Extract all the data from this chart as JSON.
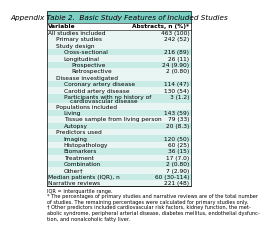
{
  "title": "Appendix Table 2.  Basic Study Features of Included Studies",
  "col1_header": "Variable",
  "col2_header": "Abstracts, n (%)*",
  "rows": [
    {
      "label": "All studies included",
      "value": "463 (100)",
      "indent": 0,
      "bold": false,
      "bg": "#e8f5f3"
    },
    {
      "label": "Primary studies",
      "value": "242 (52)",
      "indent": 1,
      "bold": false,
      "bg": "#e8f5f3"
    },
    {
      "label": "Study design",
      "value": "",
      "indent": 1,
      "bold": false,
      "bg": "#e8f5f3"
    },
    {
      "label": "Cross-sectional",
      "value": "216 (89)",
      "indent": 2,
      "bold": false,
      "bg": "#c8ebe6"
    },
    {
      "label": "Longitudinal",
      "value": "26 (11)",
      "indent": 2,
      "bold": false,
      "bg": "#e8f5f3"
    },
    {
      "label": "Prospective",
      "value": "24 (9.90)",
      "indent": 3,
      "bold": false,
      "bg": "#c8ebe6"
    },
    {
      "label": "Retrospective",
      "value": "2 (0.80)",
      "indent": 3,
      "bold": false,
      "bg": "#e8f5f3"
    },
    {
      "label": "Disease investigated",
      "value": "",
      "indent": 1,
      "bold": false,
      "bg": "#e8f5f3"
    },
    {
      "label": "Coronary artery disease",
      "value": "114 (47)",
      "indent": 2,
      "bold": false,
      "bg": "#c8ebe6"
    },
    {
      "label": "Carotid artery disease",
      "value": "130 (54)",
      "indent": 2,
      "bold": false,
      "bg": "#e8f5f3"
    },
    {
      "label": "Participants with no history of",
      "value": "3 (1.2)",
      "indent": 2,
      "bold": false,
      "bg": "#c8ebe6",
      "sub": "cardiovascular disease"
    },
    {
      "label": "Populations included",
      "value": "",
      "indent": 1,
      "bold": false,
      "bg": "#e8f5f3"
    },
    {
      "label": "Living",
      "value": "143 (59)",
      "indent": 2,
      "bold": false,
      "bg": "#c8ebe6"
    },
    {
      "label": "Tissue sample from living person",
      "value": "79 (33)",
      "indent": 2,
      "bold": false,
      "bg": "#e8f5f3"
    },
    {
      "label": "Autopsy",
      "value": "20 (8.3)",
      "indent": 2,
      "bold": false,
      "bg": "#c8ebe6"
    },
    {
      "label": "Predictors used",
      "value": "",
      "indent": 1,
      "bold": false,
      "bg": "#e8f5f3"
    },
    {
      "label": "Imaging",
      "value": "120 (50)",
      "indent": 2,
      "bold": false,
      "bg": "#c8ebe6"
    },
    {
      "label": "Histopathology",
      "value": "60 (25)",
      "indent": 2,
      "bold": false,
      "bg": "#e8f5f3"
    },
    {
      "label": "Biomarkers",
      "value": "36 (15)",
      "indent": 2,
      "bold": false,
      "bg": "#c8ebe6"
    },
    {
      "label": "Treatment",
      "value": "17 (7.0)",
      "indent": 2,
      "bold": false,
      "bg": "#e8f5f3"
    },
    {
      "label": "Combination",
      "value": "2 (0.80)",
      "indent": 2,
      "bold": false,
      "bg": "#c8ebe6"
    },
    {
      "label": "Other†",
      "value": "7 (2.90)",
      "indent": 2,
      "bold": false,
      "bg": "#e8f5f3"
    },
    {
      "label": "Median patients (IQR), n",
      "value": "60 (30-114)",
      "indent": 0,
      "bold": false,
      "bg": "#c8ebe6"
    },
    {
      "label": "Narrative reviews",
      "value": "221 (48)",
      "indent": 0,
      "bold": false,
      "bg": "#e8f5f3"
    }
  ],
  "footnotes": [
    "IQR = interquartile range.",
    "* The percentages of primary studies and narrative reviews are of the total number",
    "of studies. The remaining percentages were calculated for primary studies only.",
    "† Other predictors included cardiovascular risk factors, kidney function, the met-",
    "abolic syndrome, peripheral arterial disease, diabetes mellitus, endothelial dysfunc-",
    "tion, and nonalcoholic fatty liver."
  ],
  "title_bg": "#7ecec4",
  "body_fontsize": 4.2,
  "footnote_fontsize": 3.6,
  "title_fontsize": 5.2
}
